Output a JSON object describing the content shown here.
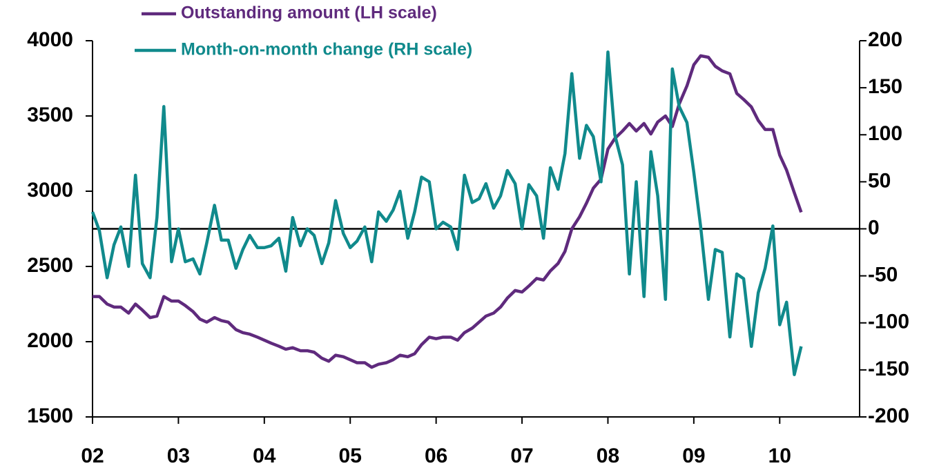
{
  "chart_data": {
    "type": "line",
    "x": [
      2002,
      2002.08,
      2002.17,
      2002.25,
      2002.33,
      2002.42,
      2002.5,
      2002.58,
      2002.67,
      2002.75,
      2002.83,
      2002.92,
      2003,
      2003.08,
      2003.17,
      2003.25,
      2003.33,
      2003.42,
      2003.5,
      2003.58,
      2003.67,
      2003.75,
      2003.83,
      2003.92,
      2004,
      2004.08,
      2004.17,
      2004.25,
      2004.33,
      2004.42,
      2004.5,
      2004.58,
      2004.67,
      2004.75,
      2004.83,
      2004.92,
      2005,
      2005.08,
      2005.17,
      2005.25,
      2005.33,
      2005.42,
      2005.5,
      2005.58,
      2005.67,
      2005.75,
      2005.83,
      2005.92,
      2006,
      2006.08,
      2006.17,
      2006.25,
      2006.33,
      2006.42,
      2006.5,
      2006.58,
      2006.67,
      2006.75,
      2006.83,
      2006.92,
      2007,
      2007.08,
      2007.17,
      2007.25,
      2007.33,
      2007.42,
      2007.5,
      2007.58,
      2007.67,
      2007.75,
      2007.83,
      2007.92,
      2008,
      2008.08,
      2008.17,
      2008.25,
      2008.33,
      2008.42,
      2008.5,
      2008.58,
      2008.67,
      2008.75,
      2008.83,
      2008.92,
      2009,
      2009.08,
      2009.17,
      2009.25,
      2009.33,
      2009.42,
      2009.5,
      2009.58,
      2009.67,
      2009.75,
      2009.83,
      2009.92,
      2010,
      2010.08,
      2010.17,
      2010.25
    ],
    "series": [
      {
        "name": "Outstanding amount (LH scale)",
        "color": "#5f2a7d",
        "values": [
          2300,
          2300,
          2250,
          2230,
          2230,
          2190,
          2250,
          2210,
          2160,
          2170,
          2300,
          2270,
          2270,
          2240,
          2200,
          2150,
          2130,
          2160,
          2140,
          2130,
          2080,
          2060,
          2050,
          2030,
          2010,
          1990,
          1970,
          1950,
          1960,
          1940,
          1940,
          1930,
          1890,
          1870,
          1910,
          1900,
          1880,
          1860,
          1860,
          1830,
          1850,
          1860,
          1880,
          1910,
          1900,
          1920,
          1980,
          2030,
          2020,
          2030,
          2030,
          2010,
          2060,
          2090,
          2130,
          2170,
          2190,
          2230,
          2290,
          2340,
          2330,
          2370,
          2420,
          2410,
          2470,
          2520,
          2600,
          2750,
          2830,
          2920,
          3020,
          3080,
          3280,
          3350,
          3400,
          3450,
          3400,
          3450,
          3380,
          3460,
          3500,
          3430,
          3580,
          3700,
          3840,
          3900,
          3890,
          3830,
          3800,
          3780,
          3650,
          3610,
          3560,
          3470,
          3410,
          3410,
          3240,
          3140,
          2990,
          2860
        ]
      },
      {
        "name": "Month-on-month change (RH scale)",
        "color": "#108a8c",
        "axis": "y2",
        "values": [
          18,
          -2,
          -52,
          -17,
          2,
          -40,
          57,
          -37,
          -52,
          12,
          130,
          -35,
          0,
          -35,
          -32,
          -48,
          -15,
          25,
          -12,
          -12,
          -42,
          -22,
          -7,
          -20,
          -20,
          -18,
          -10,
          -45,
          12,
          -18,
          0,
          -7,
          -37,
          -15,
          30,
          -5,
          -20,
          -13,
          2,
          -35,
          18,
          8,
          20,
          40,
          -10,
          18,
          55,
          50,
          0,
          7,
          2,
          -22,
          57,
          28,
          32,
          48,
          22,
          35,
          62,
          48,
          0,
          47,
          35,
          -10,
          65,
          42,
          80,
          165,
          75,
          110,
          98,
          50,
          188,
          100,
          68,
          -48,
          50,
          -72,
          82,
          35,
          -75,
          170,
          130,
          113,
          60,
          2,
          -75,
          -22,
          -25,
          -115,
          -48,
          -53,
          -125,
          -68,
          -42,
          3,
          -102,
          -78,
          -155,
          -125
        ]
      }
    ],
    "xlim": [
      2002,
      2010.93
    ],
    "xticks": [
      {
        "value": 2002,
        "label": "02"
      },
      {
        "value": 2003,
        "label": "03"
      },
      {
        "value": 2004,
        "label": "04"
      },
      {
        "value": 2005,
        "label": "05"
      },
      {
        "value": 2006,
        "label": "06"
      },
      {
        "value": 2007,
        "label": "07"
      },
      {
        "value": 2008,
        "label": "08"
      },
      {
        "value": 2009,
        "label": "09"
      },
      {
        "value": 2010,
        "label": "10"
      }
    ],
    "ylim": [
      1500,
      4000
    ],
    "yticks": [
      1500,
      2000,
      2500,
      3000,
      3500,
      4000
    ],
    "y2lim": [
      -200,
      200
    ],
    "y2ticks": [
      -200,
      -150,
      -100,
      -50,
      0,
      50,
      100,
      150,
      200
    ]
  }
}
